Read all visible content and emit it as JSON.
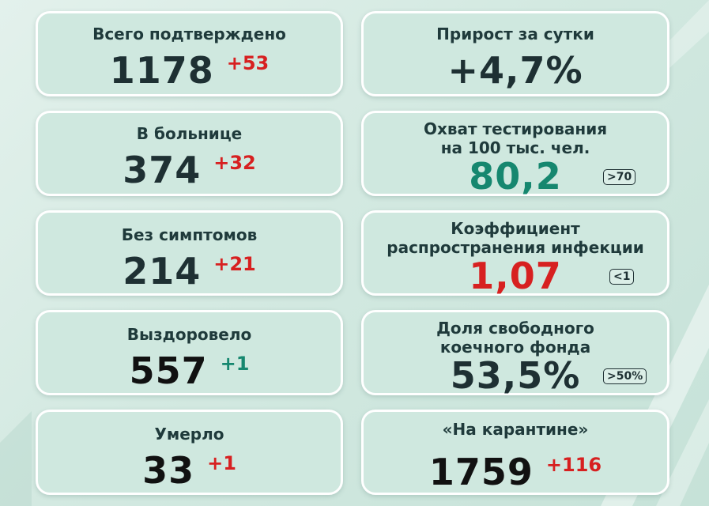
{
  "cards": {
    "confirmed": {
      "label": "Всего подтверждено",
      "value": "1178",
      "delta": "+53"
    },
    "hospital": {
      "label": "В больнице",
      "value": "374",
      "delta": "+32"
    },
    "asymptomatic": {
      "label": "Без симптомов",
      "value": "214",
      "delta": "+21"
    },
    "recovered": {
      "label": "Выздоровело",
      "value": "557",
      "delta": "+1"
    },
    "died": {
      "label": "Умерло",
      "value": "33",
      "delta": "+1"
    },
    "growth": {
      "label": "Прирост за сутки",
      "value": "+4,7%"
    },
    "testing": {
      "label_line1": "Охват тестирования",
      "label_line2": "на 100 тыс. чел.",
      "value": "80,2",
      "badge": ">70"
    },
    "r_factor": {
      "label_line1": "Коэффициент",
      "label_line2": "распространения инфекции",
      "value": "1,07",
      "badge": "<1"
    },
    "beds": {
      "label_line1": "Доля свободного",
      "label_line2": "коечного фонда",
      "value": "53,5%",
      "badge": ">50%"
    },
    "quarantine": {
      "label": "«На карантине»",
      "value": "1759",
      "delta": "+116"
    }
  },
  "colors": {
    "dark": "#1e3033",
    "red": "#d72020",
    "teal": "#16876f",
    "card": "#cfe8df"
  }
}
